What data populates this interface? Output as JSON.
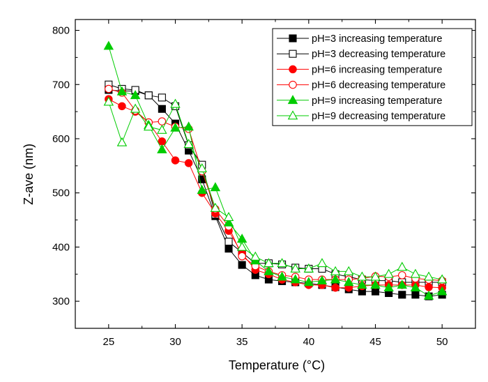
{
  "chart_data": {
    "type": "line",
    "title": "",
    "xlabel": "Temperature (°C)",
    "ylabel": "Z-ave (nm)",
    "xlim": [
      22.5,
      52.5
    ],
    "ylim": [
      250,
      820
    ],
    "xticks": [
      25,
      30,
      35,
      40,
      45,
      50
    ],
    "yticks": [
      300,
      400,
      500,
      600,
      700,
      800
    ],
    "x": [
      25,
      26,
      27,
      28,
      29,
      30,
      31,
      32,
      33,
      34,
      35,
      36,
      37,
      38,
      39,
      40,
      41,
      42,
      43,
      44,
      45,
      46,
      47,
      48,
      49,
      50
    ],
    "legend_position": "top-right",
    "series": [
      {
        "name": "pH=3 increasing temperature",
        "color": "#000000",
        "marker": "square",
        "filled": true,
        "values": [
          690,
          688,
          688,
          680,
          655,
          628,
          578,
          525,
          457,
          397,
          367,
          348,
          340,
          337,
          335,
          333,
          330,
          326,
          322,
          318,
          318,
          315,
          312,
          312,
          309,
          312
        ]
      },
      {
        "name": "pH=3 decreasing temperature",
        "color": "#000000",
        "marker": "square",
        "filled": false,
        "values": [
          700,
          692,
          690,
          680,
          676,
          660,
          588,
          552,
          460,
          410,
          390,
          370,
          370,
          368,
          362,
          360,
          360,
          350,
          345,
          340,
          338,
          338,
          335,
          335,
          335,
          335
        ]
      },
      {
        "name": "pH=6 increasing temperature",
        "color": "#ff0000",
        "marker": "circle",
        "filled": true,
        "values": [
          673,
          660,
          650,
          630,
          595,
          560,
          555,
          500,
          462,
          430,
          388,
          358,
          350,
          340,
          335,
          330,
          330,
          325,
          325,
          328,
          330,
          330,
          330,
          330,
          326,
          325
        ]
      },
      {
        "name": "pH=6 decreasing temperature",
        "color": "#ff0000",
        "marker": "circle",
        "filled": false,
        "values": [
          692,
          685,
          652,
          630,
          632,
          622,
          618,
          540,
          470,
          438,
          383,
          365,
          355,
          348,
          345,
          340,
          340,
          340,
          340,
          342,
          346,
          345,
          348,
          342,
          340,
          338
        ]
      },
      {
        "name": "pH=9 increasing temperature",
        "color": "#00cc00",
        "marker": "triangle",
        "filled": true,
        "values": [
          771,
          687,
          680,
          625,
          580,
          620,
          622,
          505,
          510,
          445,
          415,
          375,
          355,
          345,
          340,
          335,
          338,
          340,
          335,
          330,
          330,
          325,
          330,
          325,
          310,
          318
        ]
      },
      {
        "name": "pH=9 decreasing temperature",
        "color": "#00cc00",
        "marker": "triangle",
        "filled": false,
        "values": [
          668,
          593,
          655,
          622,
          616,
          664,
          590,
          545,
          472,
          455,
          400,
          382,
          370,
          370,
          360,
          360,
          370,
          355,
          355,
          345,
          345,
          350,
          363,
          350,
          345,
          340
        ]
      }
    ]
  }
}
